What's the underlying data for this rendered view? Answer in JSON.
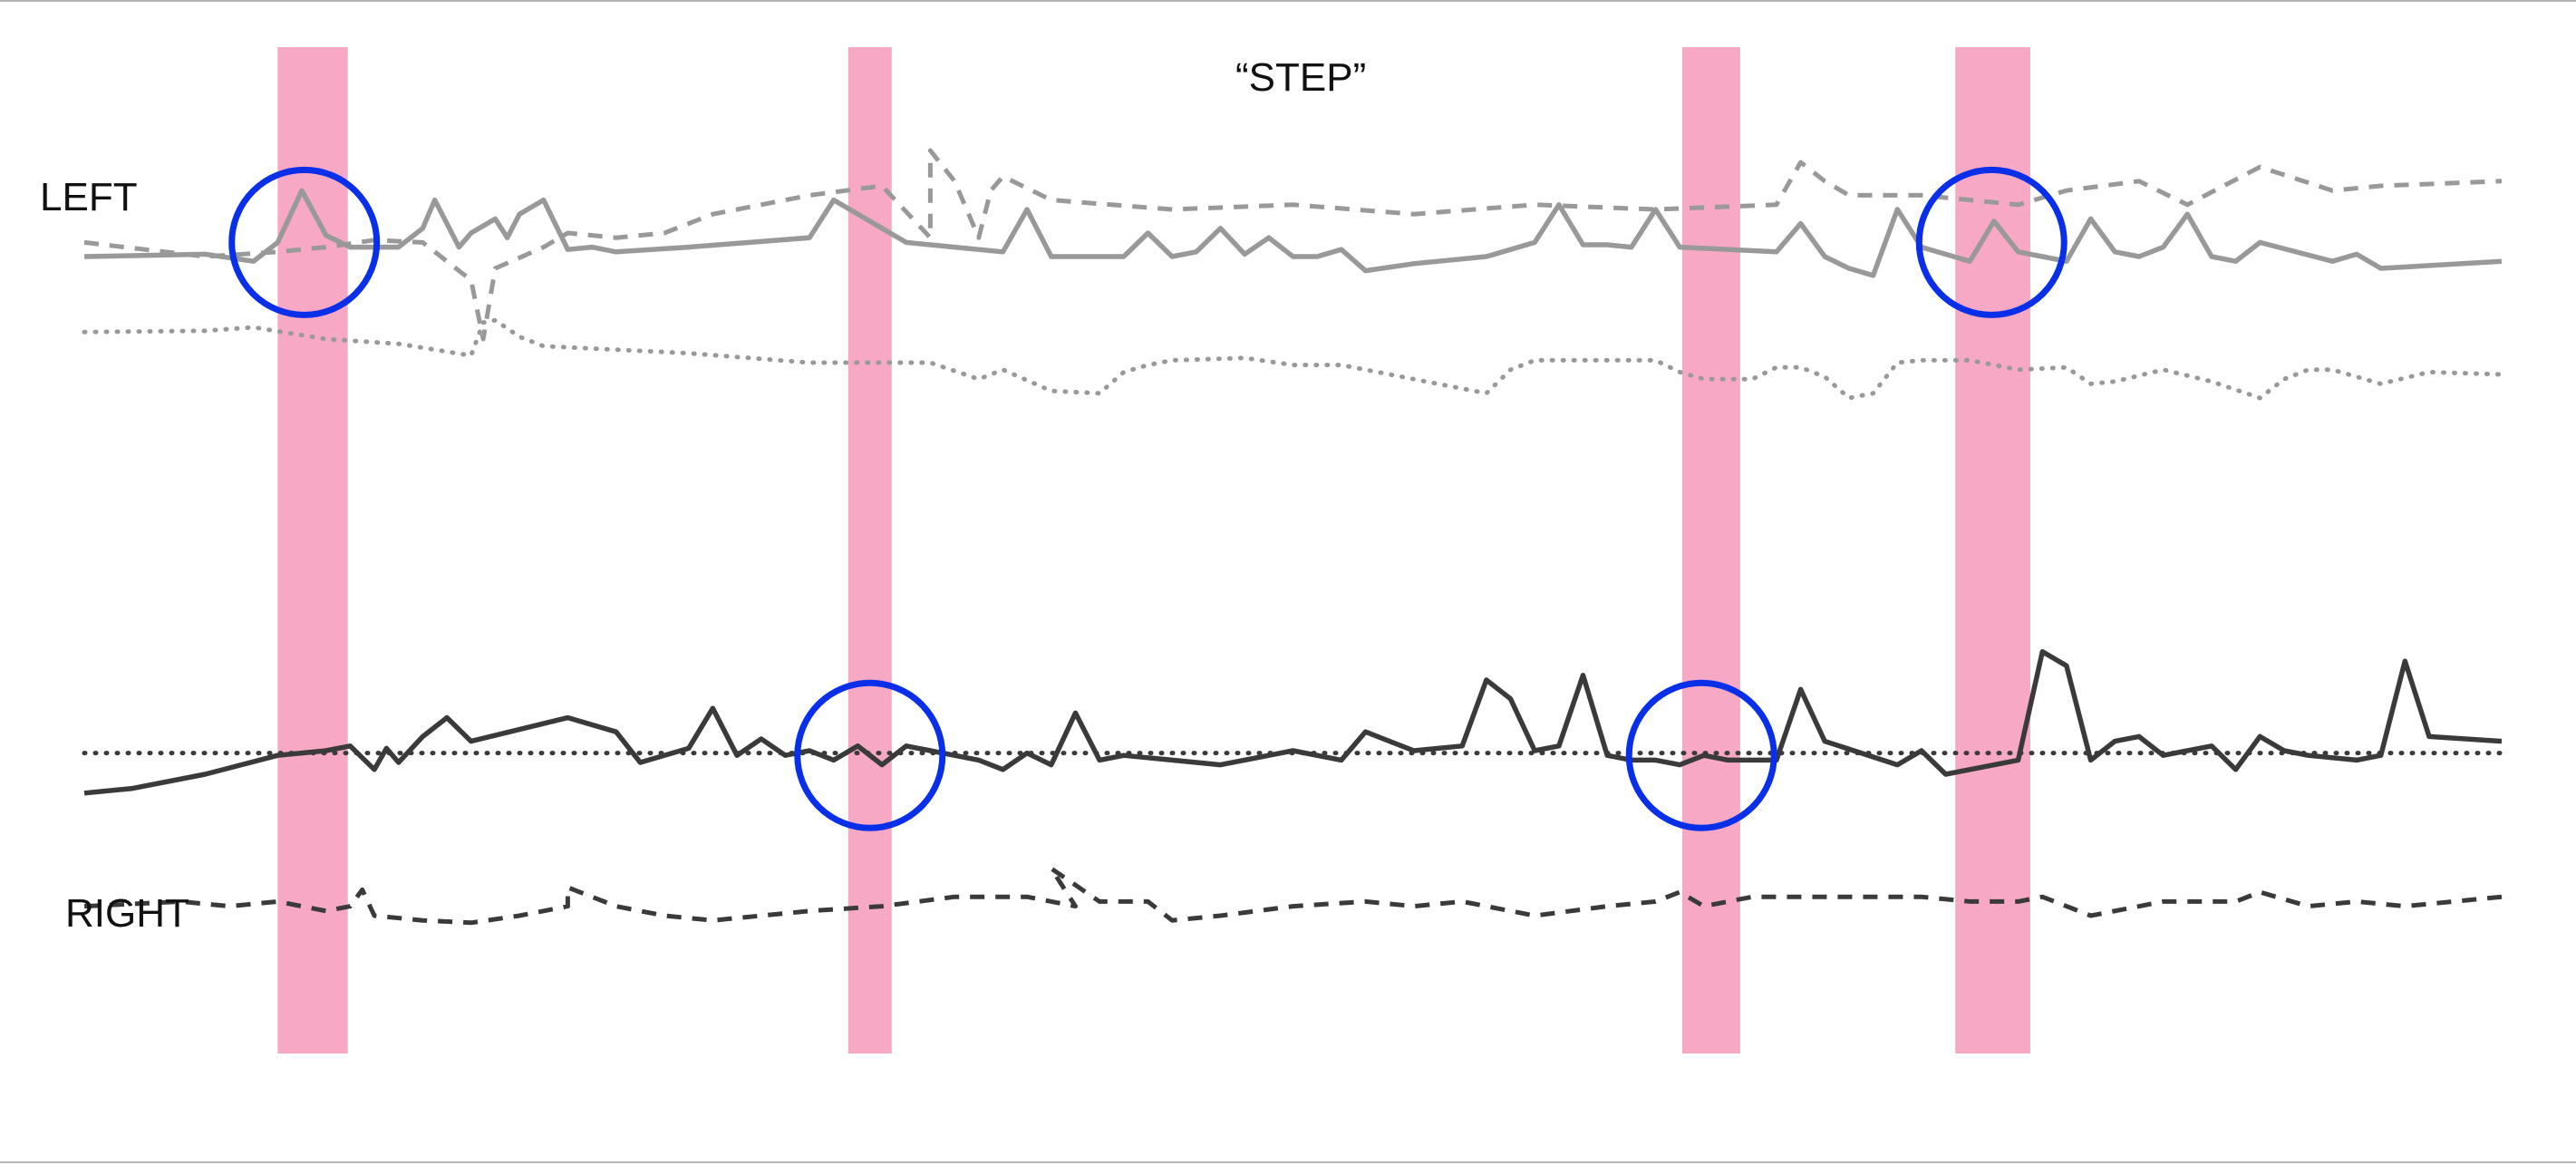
{
  "chart_data": {
    "type": "line",
    "title": "“STEP”",
    "groups": [
      {
        "label": "LEFT",
        "color": "#999999"
      },
      {
        "label": "RIGHT",
        "color": "#3a3a3a"
      }
    ],
    "highlight_color": "#f6a8c4",
    "marker_color": "#0a2fe8",
    "event_bands": [
      {
        "start": 0.08,
        "end": 0.109
      },
      {
        "start": 0.316,
        "end": 0.334
      },
      {
        "start": 0.661,
        "end": 0.685
      },
      {
        "start": 0.774,
        "end": 0.805
      }
    ],
    "circled_events": [
      {
        "x": 0.091,
        "group": "LEFT"
      },
      {
        "x": 0.325,
        "group": "RIGHT"
      },
      {
        "x": 0.669,
        "group": "RIGHT"
      },
      {
        "x": 0.789,
        "group": "LEFT"
      }
    ],
    "series": [
      {
        "group": "LEFT",
        "style": "dotted",
        "x": [
          0,
          0.05,
          0.07,
          0.1,
          0.13,
          0.16,
          0.165,
          0.17,
          0.18,
          0.19,
          0.21,
          0.25,
          0.3,
          0.35,
          0.37,
          0.38,
          0.4,
          0.42,
          0.43,
          0.44,
          0.45,
          0.48,
          0.5,
          0.52,
          0.54,
          0.56,
          0.58,
          0.59,
          0.6,
          0.62,
          0.65,
          0.66,
          0.67,
          0.69,
          0.7,
          0.71,
          0.72,
          0.73,
          0.74,
          0.75,
          0.76,
          0.78,
          0.8,
          0.82,
          0.83,
          0.84,
          0.86,
          0.88,
          0.9,
          0.91,
          0.92,
          0.93,
          0.95,
          0.97,
          1
        ],
        "y": [
          8,
          8.5,
          10,
          5,
          3,
          -2,
          12,
          13,
          6,
          2,
          1,
          -1,
          -5,
          -5,
          -12,
          -8,
          -17,
          -18,
          -9,
          -6,
          -4,
          -3,
          -6,
          -6,
          -10,
          -14,
          -18,
          -8,
          -4,
          -4,
          -4,
          -9,
          -12,
          -12,
          -7,
          -7,
          -11,
          -20,
          -18,
          -5,
          -4,
          -4,
          -8,
          -7,
          -14,
          -13,
          -8,
          -13,
          -20,
          -12,
          -8,
          -8,
          -14,
          -9,
          -10
        ]
      },
      {
        "group": "LEFT",
        "style": "solid",
        "x": [
          0,
          0.05,
          0.07,
          0.08,
          0.09,
          0.1,
          0.11,
          0.13,
          0.14,
          0.145,
          0.155,
          0.16,
          0.17,
          0.175,
          0.18,
          0.19,
          0.2,
          0.21,
          0.22,
          0.25,
          0.3,
          0.31,
          0.34,
          0.35,
          0.36,
          0.38,
          0.39,
          0.4,
          0.43,
          0.44,
          0.45,
          0.46,
          0.47,
          0.48,
          0.49,
          0.5,
          0.51,
          0.52,
          0.53,
          0.55,
          0.58,
          0.6,
          0.61,
          0.62,
          0.63,
          0.64,
          0.65,
          0.66,
          0.7,
          0.71,
          0.72,
          0.73,
          0.74,
          0.75,
          0.76,
          0.78,
          0.79,
          0.8,
          0.81,
          0.82,
          0.83,
          0.84,
          0.85,
          0.86,
          0.87,
          0.88,
          0.89,
          0.9,
          0.93,
          0.94,
          0.95,
          1
        ],
        "y": [
          40,
          41,
          38,
          46,
          68,
          49,
          44,
          44,
          52,
          64,
          44,
          50,
          56,
          48,
          58,
          64,
          43,
          44,
          42,
          44,
          48,
          64,
          46,
          45,
          44,
          42,
          60,
          40,
          40,
          50,
          40,
          42,
          52,
          41,
          48,
          40,
          40,
          43,
          34,
          37,
          40,
          46,
          62,
          45,
          45,
          44,
          60,
          44,
          42,
          54,
          40,
          35,
          32,
          60,
          44,
          38,
          55,
          42,
          40,
          38,
          56,
          42,
          40,
          44,
          58,
          40,
          38,
          46,
          38,
          41,
          35,
          38
        ]
      },
      {
        "group": "LEFT",
        "style": "dashed",
        "x": [
          0,
          0.05,
          0.08,
          0.1,
          0.12,
          0.14,
          0.16,
          0.165,
          0.17,
          0.19,
          0.2,
          0.22,
          0.24,
          0.26,
          0.28,
          0.3,
          0.33,
          0.35,
          0.35,
          0.36,
          0.37,
          0.375,
          0.38,
          0.4,
          0.45,
          0.5,
          0.55,
          0.6,
          0.65,
          0.7,
          0.71,
          0.72,
          0.73,
          0.76,
          0.8,
          0.82,
          0.85,
          0.87,
          0.9,
          0.93,
          0.95,
          1
        ],
        "y": [
          46,
          40,
          42,
          44,
          47,
          46,
          30,
          5,
          35,
          44,
          50,
          48,
          50,
          58,
          62,
          66,
          70,
          48,
          85,
          72,
          48,
          68,
          74,
          64,
          60,
          62,
          58,
          62,
          60,
          62,
          80,
          72,
          66,
          66,
          62,
          68,
          72,
          62,
          78,
          68,
          70,
          72
        ]
      },
      {
        "group": "RIGHT",
        "style": "solid",
        "x": [
          0,
          0.02,
          0.05,
          0.08,
          0.1,
          0.11,
          0.12,
          0.125,
          0.13,
          0.14,
          0.15,
          0.16,
          0.2,
          0.22,
          0.23,
          0.25,
          0.26,
          0.27,
          0.28,
          0.29,
          0.3,
          0.31,
          0.32,
          0.33,
          0.34,
          0.35,
          0.36,
          0.37,
          0.38,
          0.39,
          0.4,
          0.41,
          0.42,
          0.43,
          0.44,
          0.45,
          0.47,
          0.5,
          0.52,
          0.53,
          0.55,
          0.57,
          0.58,
          0.59,
          0.6,
          0.61,
          0.62,
          0.63,
          0.64,
          0.65,
          0.66,
          0.67,
          0.68,
          0.7,
          0.71,
          0.72,
          0.75,
          0.76,
          0.77,
          0.78,
          0.8,
          0.81,
          0.82,
          0.83,
          0.84,
          0.85,
          0.86,
          0.88,
          0.89,
          0.9,
          0.91,
          0.92,
          0.94,
          0.95,
          0.96,
          0.97,
          1
        ],
        "y": [
          -28,
          -26,
          -20,
          -12,
          -10,
          -8,
          -18,
          -9,
          -15,
          -4,
          4,
          -6,
          4,
          -2,
          -15,
          -9,
          8,
          -12,
          -5,
          -12,
          -10,
          -14,
          -8,
          -16,
          -8,
          -10,
          -12,
          -14,
          -18,
          -11,
          -16,
          6,
          -14,
          -12,
          -13,
          -14,
          -16,
          -10,
          -14,
          -2,
          -10,
          -8,
          20,
          12,
          -10,
          -8,
          22,
          -12,
          -14,
          -14,
          -16,
          -12,
          -14,
          -14,
          16,
          -6,
          -16,
          -10,
          -20,
          -18,
          -14,
          32,
          26,
          -14,
          -6,
          -4,
          -12,
          -8,
          -18,
          -4,
          -10,
          -12,
          -14,
          -12,
          28,
          -4,
          -6
        ]
      },
      {
        "group": "RIGHT",
        "style": "dotted",
        "x": [
          0,
          0.25,
          0.5,
          0.75,
          1
        ],
        "y": [
          -11,
          -11,
          -11,
          -11,
          -11
        ]
      },
      {
        "group": "RIGHT",
        "style": "dashed",
        "x": [
          0,
          0.04,
          0.06,
          0.08,
          0.09,
          0.1,
          0.11,
          0.115,
          0.12,
          0.14,
          0.16,
          0.18,
          0.2,
          0.2,
          0.22,
          0.24,
          0.26,
          0.3,
          0.33,
          0.36,
          0.39,
          0.41,
          0.4,
          0.42,
          0.44,
          0.45,
          0.47,
          0.5,
          0.53,
          0.55,
          0.57,
          0.6,
          0.63,
          0.65,
          0.66,
          0.67,
          0.69,
          0.72,
          0.76,
          0.78,
          0.8,
          0.81,
          0.83,
          0.86,
          0.89,
          0.9,
          0.92,
          0.94,
          0.96,
          1
        ],
        "y": [
          -76,
          -74,
          -76,
          -74,
          -76,
          -78,
          -76,
          -69,
          -80,
          -82,
          -83,
          -80,
          -76,
          -68,
          -76,
          -80,
          -82,
          -78,
          -76,
          -72,
          -72,
          -76,
          -60,
          -74,
          -74,
          -82,
          -80,
          -76,
          -74,
          -76,
          -74,
          -80,
          -76,
          -74,
          -70,
          -76,
          -72,
          -72,
          -72,
          -74,
          -74,
          -72,
          -80,
          -74,
          -74,
          -70,
          -76,
          -74,
          -76,
          -72
        ]
      }
    ],
    "ylim": [
      -100,
      100
    ]
  }
}
